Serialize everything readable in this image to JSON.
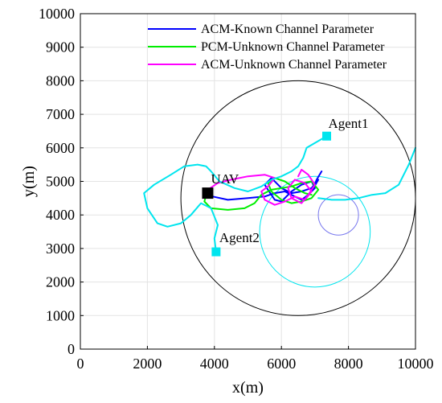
{
  "chart_data": {
    "type": "line",
    "xlabel": "x(m)",
    "ylabel": "y(m)",
    "xlim": [
      0,
      10000
    ],
    "ylim": [
      0,
      10000
    ],
    "xticks": [
      "0",
      "2000",
      "4000",
      "6000",
      "8000",
      "10000"
    ],
    "yticks": [
      "0",
      "1000",
      "2000",
      "3000",
      "4000",
      "5000",
      "6000",
      "7000",
      "8000",
      "9000",
      "10000"
    ],
    "grid": true,
    "legend_position": "top-right",
    "legend": [
      {
        "label": "ACM-Known Channel Parameter",
        "color": "#0000ff"
      },
      {
        "label": "PCM-Unknown Channel Parameter",
        "color": "#00ee00"
      },
      {
        "label": "ACM-Unknown Channel Parameter",
        "color": "#ff00ff"
      }
    ],
    "series": [
      {
        "name": "ACM-Known Channel Parameter",
        "color": "#0000ff",
        "x": [
          3950,
          4400,
          5000,
          5500,
          5800,
          6100,
          6400,
          6600,
          6800,
          7000,
          6900,
          6600,
          6300,
          6000,
          5800,
          5600,
          5500,
          5700,
          6000,
          6300,
          6600,
          6900,
          7100,
          6900,
          7050,
          7200
        ],
        "y": [
          4550,
          4450,
          4500,
          4550,
          4650,
          4700,
          4550,
          4450,
          4600,
          4800,
          5000,
          4900,
          4700,
          4400,
          4450,
          4750,
          4900,
          5100,
          4800,
          4650,
          4700,
          4800,
          5050,
          4700,
          5050,
          5300
        ]
      },
      {
        "name": "PCM-Unknown Channel Parameter",
        "color": "#00ee00",
        "x": [
          3800,
          3700,
          3900,
          4400,
          4900,
          5200,
          5400,
          5700,
          6000,
          6300,
          6600,
          6900,
          7100,
          6900,
          6600,
          6300,
          6000,
          5700,
          5600,
          5800,
          6100,
          6400,
          6700,
          6900
        ],
        "y": [
          4750,
          4400,
          4200,
          4150,
          4200,
          4350,
          4600,
          4750,
          4800,
          4850,
          4950,
          5000,
          4750,
          4500,
          4400,
          4350,
          4450,
          4700,
          4950,
          5100,
          5000,
          4800,
          4650,
          4600
        ]
      },
      {
        "name": "ACM-Unknown Channel Parameter",
        "color": "#ff00ff",
        "x": [
          3800,
          4100,
          4500,
          5000,
          5500,
          5800,
          5600,
          5400,
          5500,
          5800,
          6100,
          6400,
          6700,
          6900,
          6700,
          6400,
          6200,
          6300,
          6600,
          6800,
          7000,
          6800,
          6600,
          6500
        ],
        "y": [
          4750,
          4950,
          5050,
          5150,
          5200,
          5100,
          4850,
          4700,
          4450,
          4300,
          4400,
          4550,
          4450,
          4700,
          4950,
          5050,
          4800,
          4500,
          4350,
          4600,
          4900,
          5200,
          5350,
          5150
        ]
      },
      {
        "name": "",
        "color": "#00e5ee",
        "x": [
          7350,
          6750,
          6650,
          6500,
          6300,
          6000,
          5700,
          5400,
          5000,
          4600,
          4150,
          3900,
          3750,
          3500,
          3100,
          2700,
          2200,
          1900,
          2000,
          2300,
          2600,
          3000,
          3300,
          3600,
          3900,
          4100,
          4000,
          4050
        ],
        "y": [
          6350,
          6000,
          5700,
          5450,
          5300,
          5150,
          5050,
          4850,
          4700,
          4800,
          5000,
          5300,
          5450,
          5500,
          5450,
          5200,
          4900,
          4650,
          4200,
          3750,
          3650,
          3750,
          4000,
          4350,
          4200,
          3700,
          3300,
          2900
        ]
      },
      {
        "name": "",
        "color": "#00e5ee",
        "x": [
          7100,
          7500,
          7900,
          8300,
          8700,
          9100,
          9500,
          9800,
          10000
        ],
        "y": [
          4500,
          4450,
          4450,
          4500,
          4600,
          4650,
          4900,
          5500,
          6000
        ]
      }
    ],
    "circles": [
      {
        "cx": 6500,
        "cy": 4500,
        "r": 3500,
        "color": "#000000"
      },
      {
        "cx": 7000,
        "cy": 3500,
        "r": 1650,
        "color": "#00e5ee"
      },
      {
        "cx": 7700,
        "cy": 4000,
        "r": 600,
        "color": "#7777ee"
      }
    ],
    "markers": [
      {
        "label": "UAV",
        "x": 3800,
        "y": 4650,
        "color": "#000000"
      },
      {
        "label": "Agent1",
        "x": 7350,
        "y": 6350,
        "color": "#00e5ee"
      },
      {
        "label": "Agent2",
        "x": 4050,
        "y": 2900,
        "color": "#00e5ee"
      }
    ]
  }
}
